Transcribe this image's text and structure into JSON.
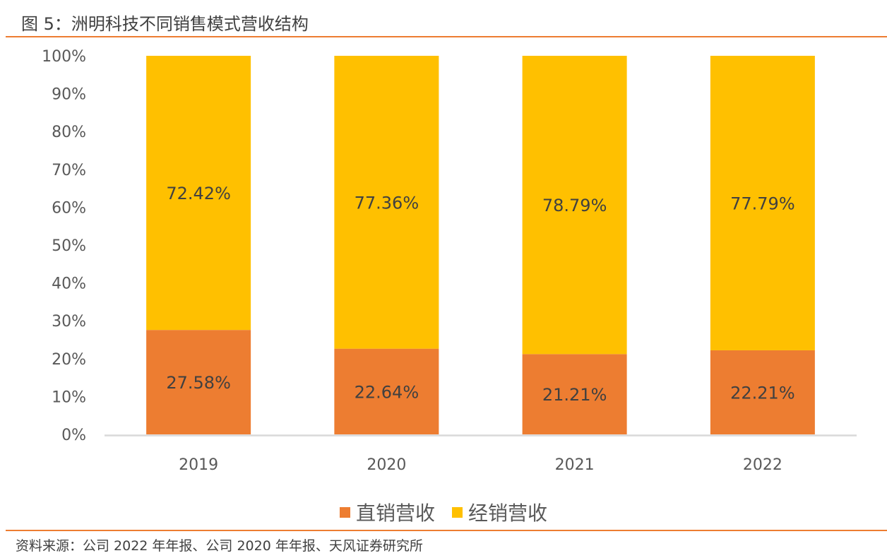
{
  "header": {
    "figure_title": "图 5：洲明科技不同销售模式营收结构"
  },
  "footer": {
    "source": "资料来源：公司 2022 年年报、公司 2020 年年报、天风证券研究所"
  },
  "chart_data": {
    "type": "bar",
    "stacked": true,
    "title": "图 5：洲明科技不同销售模式营收结构",
    "xlabel": "",
    "ylabel": "",
    "categories": [
      "2019",
      "2020",
      "2021",
      "2022"
    ],
    "series": [
      {
        "name": "直销营收",
        "color": "#ED7D31",
        "values": [
          27.58,
          22.64,
          21.21,
          22.21
        ],
        "labels": [
          "27.58%",
          "22.64%",
          "21.21%",
          "22.21%"
        ]
      },
      {
        "name": "经销营收",
        "color": "#FFC000",
        "values": [
          72.42,
          77.36,
          78.79,
          77.79
        ],
        "labels": [
          "72.42%",
          "77.36%",
          "78.79%",
          "77.79%"
        ]
      }
    ],
    "ylim": [
      0,
      100
    ],
    "yticks": [
      0,
      10,
      20,
      30,
      40,
      50,
      60,
      70,
      80,
      90,
      100
    ],
    "ytick_labels": [
      "0%",
      "10%",
      "20%",
      "30%",
      "40%",
      "50%",
      "60%",
      "70%",
      "80%",
      "90%",
      "100%"
    ],
    "grid": false,
    "legend": "bottom",
    "axis_color": "#D9D9D9",
    "tick_label_color": "#595959",
    "data_label_color": "#404040"
  }
}
